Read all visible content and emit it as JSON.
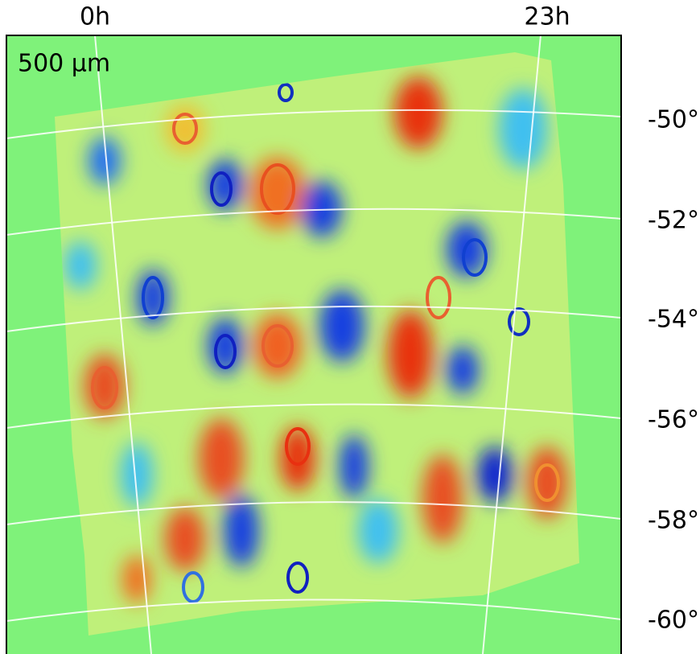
{
  "ra_labels": [
    "0h",
    "23h"
  ],
  "band_label": "500 μm",
  "dec_labels": [
    "-50°",
    "-52°",
    "-54°",
    "-56°",
    "-58°",
    "-60°"
  ]
}
